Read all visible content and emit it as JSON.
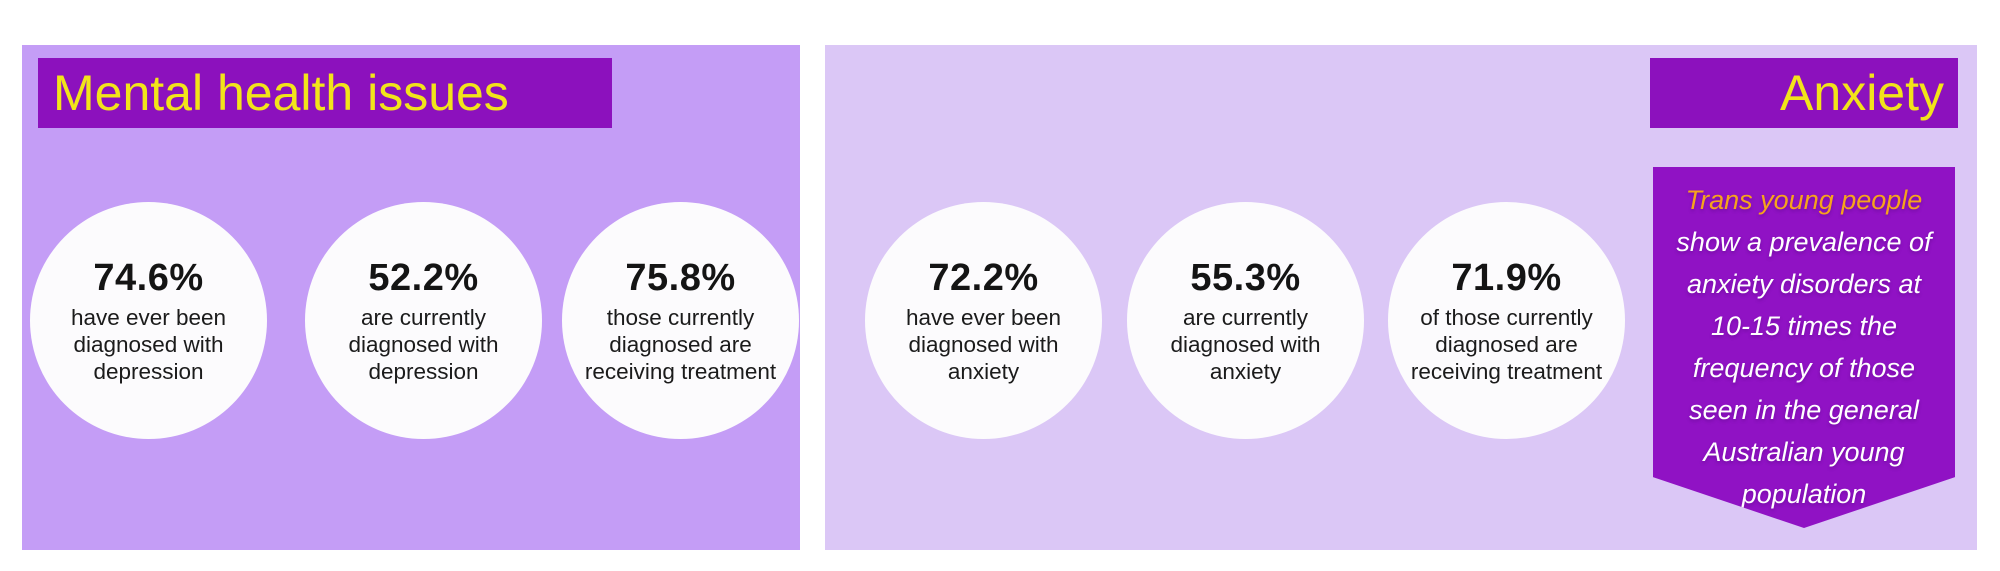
{
  "colors": {
    "page_bg": "#ffffff",
    "panel_left_bg": "#c49df6",
    "panel_right_bg": "#dbc7f6",
    "banner_bg": "#8c11bd",
    "ribbon_bg": "#9012c4",
    "title_yellow": "#f2e41a",
    "highlight_orange": "#f6a31c",
    "circle_bg": "#fcfbfd"
  },
  "panels": [
    {
      "title": "Mental health issues",
      "stats": [
        {
          "value": "74.6%",
          "label": "have ever been diagnosed with depression"
        },
        {
          "value": "52.2%",
          "label": "are currently diagnosed with depression"
        },
        {
          "value": "75.8%",
          "label": "those currently diagnosed are receiving treatment"
        }
      ]
    },
    {
      "title": "Anxiety",
      "stats": [
        {
          "value": "72.2%",
          "label": "have ever been diagnosed with anxiety"
        },
        {
          "value": "55.3%",
          "label": "are currently diagnosed with anxiety"
        },
        {
          "value": "71.9%",
          "label": "of those currently diagnosed are receiving treatment"
        }
      ],
      "ribbon": {
        "highlight": "Trans young people",
        "text": "show a prevalence of anxiety disorders at 10-15 times the frequency of those seen in the general Australian young population"
      }
    }
  ],
  "chart_data": [
    {
      "type": "table",
      "title": "Mental health issues",
      "unit": "%",
      "categories": [
        "have ever been diagnosed with depression",
        "are currently diagnosed with depression",
        "those currently diagnosed are receiving treatment"
      ],
      "values": [
        74.6,
        52.2,
        75.8
      ]
    },
    {
      "type": "table",
      "title": "Anxiety",
      "unit": "%",
      "categories": [
        "have ever been diagnosed with anxiety",
        "are currently diagnosed with anxiety",
        "of those currently diagnosed are receiving treatment"
      ],
      "values": [
        72.2,
        55.3,
        71.9
      ],
      "annotation": "Trans young people show a prevalence of anxiety disorders at 10-15 times the frequency of those seen in the general Australian young population"
    }
  ]
}
